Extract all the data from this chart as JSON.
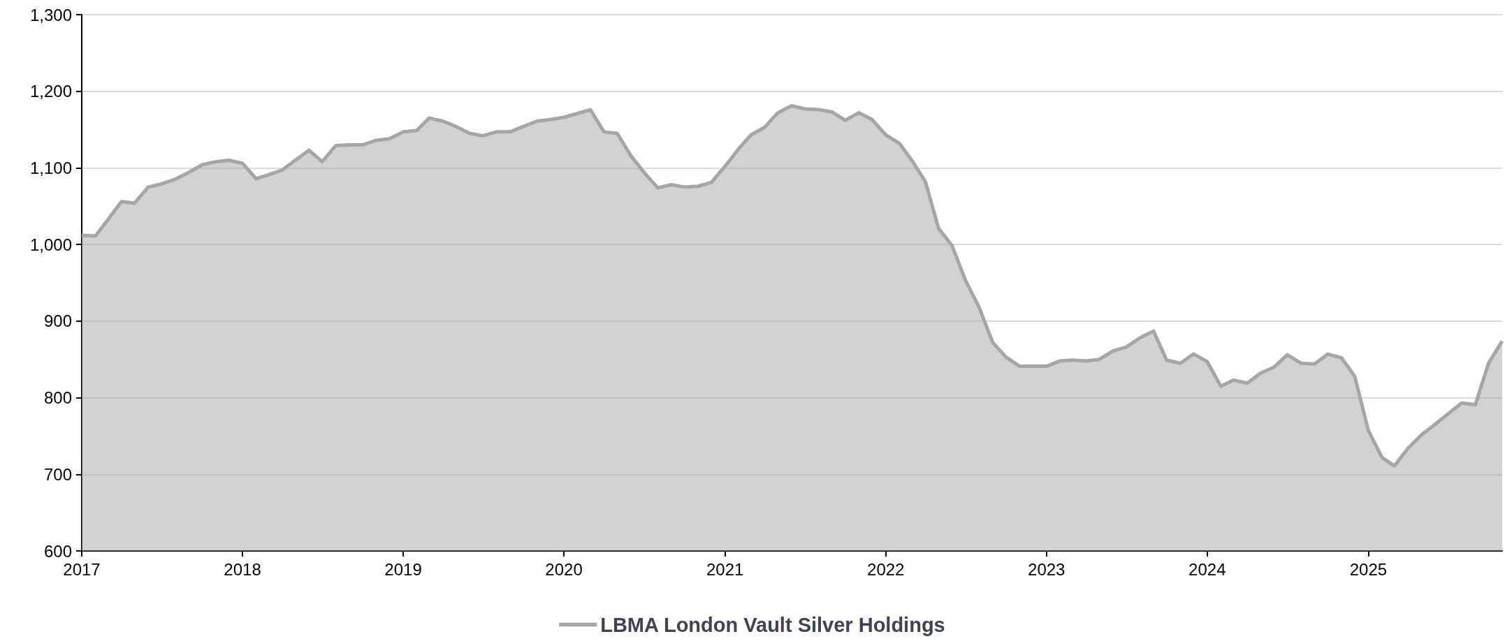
{
  "chart_data": {
    "type": "area",
    "legend": "bottom",
    "grid": "y",
    "xlim": [
      "2017-01",
      "2025-11"
    ],
    "xticks": [
      "2017",
      "2018",
      "2019",
      "2020",
      "2021",
      "2022",
      "2023",
      "2024",
      "2025"
    ],
    "ylim": [
      600,
      1300
    ],
    "yticks": [
      600,
      700,
      800,
      900,
      {
        "value": 1000,
        "label": "1,000"
      },
      {
        "value": 1100,
        "label": "1,100"
      },
      {
        "value": 1200,
        "label": "1,200"
      },
      {
        "value": 1300,
        "label": "1,300"
      }
    ],
    "x": [
      "2017-01",
      "2017-02",
      "2017-03",
      "2017-04",
      "2017-05",
      "2017-06",
      "2017-07",
      "2017-08",
      "2017-09",
      "2017-10",
      "2017-11",
      "2017-12",
      "2018-01",
      "2018-02",
      "2018-03",
      "2018-04",
      "2018-05",
      "2018-06",
      "2018-07",
      "2018-08",
      "2018-09",
      "2018-10",
      "2018-11",
      "2018-12",
      "2019-01",
      "2019-02",
      "2019-03",
      "2019-04",
      "2019-05",
      "2019-06",
      "2019-07",
      "2019-08",
      "2019-09",
      "2019-10",
      "2019-11",
      "2019-12",
      "2020-01",
      "2020-02",
      "2020-03",
      "2020-04",
      "2020-05",
      "2020-06",
      "2020-07",
      "2020-08",
      "2020-09",
      "2020-10",
      "2020-11",
      "2020-12",
      "2021-01",
      "2021-02",
      "2021-03",
      "2021-04",
      "2021-05",
      "2021-06",
      "2021-07",
      "2021-08",
      "2021-09",
      "2021-10",
      "2021-11",
      "2021-12",
      "2022-01",
      "2022-02",
      "2022-03",
      "2022-04",
      "2022-05",
      "2022-06",
      "2022-07",
      "2022-08",
      "2022-09",
      "2022-10",
      "2022-11",
      "2022-12",
      "2023-01",
      "2023-02",
      "2023-03",
      "2023-04",
      "2023-05",
      "2023-06",
      "2023-07",
      "2023-08",
      "2023-09",
      "2023-10",
      "2023-11",
      "2023-12",
      "2024-01",
      "2024-02",
      "2024-03",
      "2024-04",
      "2024-05",
      "2024-06",
      "2024-07",
      "2024-08",
      "2024-09",
      "2024-10",
      "2024-11",
      "2024-12",
      "2025-01",
      "2025-02",
      "2025-03",
      "2025-04",
      "2025-05",
      "2025-06",
      "2025-07",
      "2025-08",
      "2025-09",
      "2025-10",
      "2025-11"
    ],
    "series": [
      {
        "name": "LBMA London Vault Silver Holdings",
        "color": "#a6a6a6",
        "values": [
          1012,
          1011,
          1032,
          1056,
          1054,
          1075,
          1079,
          1085,
          1094,
          1104,
          1108,
          1110,
          1106,
          1086,
          1091,
          1097,
          1110,
          1123,
          1108,
          1129,
          1130,
          1130,
          1136,
          1138,
          1147,
          1149,
          1165,
          1161,
          1154,
          1145,
          1142,
          1147,
          1147,
          1154,
          1161,
          1163,
          1166,
          1171,
          1176,
          1147,
          1145,
          1116,
          1094,
          1074,
          1078,
          1075,
          1076,
          1081,
          1102,
          1125,
          1143,
          1153,
          1172,
          1181,
          1177,
          1176,
          1173,
          1162,
          1172,
          1163,
          1143,
          1132,
          1110,
          1082,
          1021,
          998,
          953,
          918,
          872,
          853,
          841,
          841,
          841,
          848,
          849,
          848,
          850,
          861,
          866,
          878,
          887,
          849,
          845,
          857,
          847,
          815,
          823,
          819,
          832,
          840,
          856,
          845,
          844,
          857,
          852,
          828,
          757,
          722,
          711,
          734,
          751,
          765,
          779,
          793,
          791,
          845,
          874
        ]
      }
    ]
  }
}
